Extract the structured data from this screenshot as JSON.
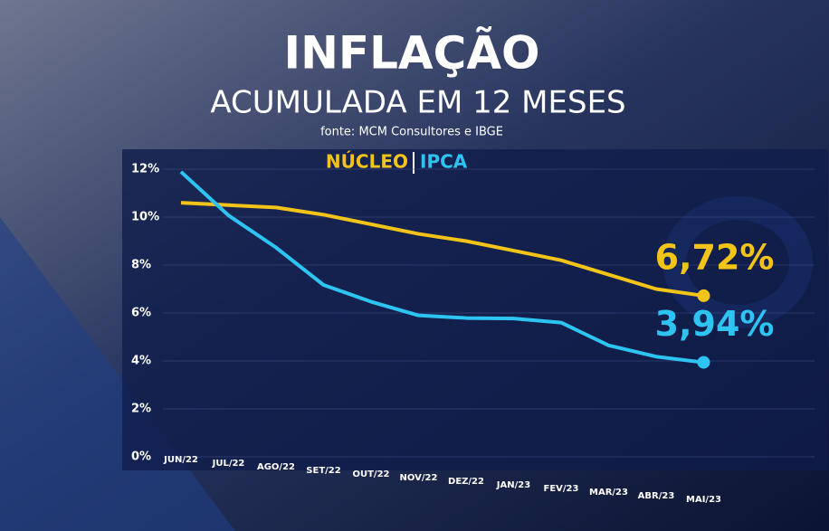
{
  "chart_data": {
    "type": "line",
    "title": "INFLAÇÃO",
    "subtitle": "ACUMULADA EM 12 MESES",
    "source": "fonte: MCM Consultores e IBGE",
    "categories": [
      "JUN/22",
      "JUL/22",
      "AGO/22",
      "SET/22",
      "OUT/22",
      "NOV/22",
      "DEZ/22",
      "JAN/23",
      "FEV/23",
      "MAR/23",
      "ABR/23",
      "MAI/23"
    ],
    "series": [
      {
        "name": "NÚCLEO",
        "color": "#f2c417",
        "values": [
          10.6,
          10.5,
          10.4,
          10.1,
          9.7,
          9.3,
          9.0,
          8.6,
          8.2,
          7.6,
          7.0,
          6.72
        ],
        "value_labels": [
          null,
          null,
          null,
          null,
          null,
          null,
          null,
          null,
          null,
          null,
          null,
          "6,72%"
        ]
      },
      {
        "name": "IPCA",
        "color": "#2ec4f2",
        "values": [
          11.89,
          10.07,
          8.73,
          7.17,
          6.47,
          5.9,
          5.79,
          5.77,
          5.6,
          4.65,
          4.18,
          3.94
        ],
        "value_labels": [
          null,
          null,
          null,
          null,
          null,
          null,
          null,
          null,
          null,
          null,
          null,
          "3,94%"
        ]
      }
    ],
    "ylim": [
      0,
      12
    ],
    "yticks": [
      {
        "value": 0,
        "label": "0%"
      },
      {
        "value": 2,
        "label": "2%"
      },
      {
        "value": 4,
        "label": "4%"
      },
      {
        "value": 6,
        "label": "6%"
      },
      {
        "value": 8,
        "label": "8%"
      },
      {
        "value": 10,
        "label": "10%"
      },
      {
        "value": 12,
        "label": "12%"
      }
    ],
    "grid": true
  }
}
